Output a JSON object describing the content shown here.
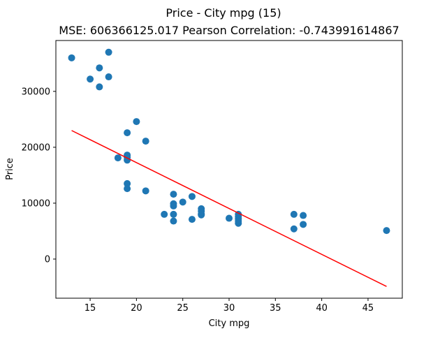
{
  "chart_data": {
    "type": "scatter",
    "title": "Price - City mpg (15)",
    "subtitle": "MSE: 606366125.017 Pearson Correlation: -0.743991614867",
    "xlabel": "City mpg",
    "ylabel": "Price",
    "xlim": [
      11.3,
      48.7
    ],
    "ylim": [
      -7000,
      39100
    ],
    "x_ticks": [
      15,
      20,
      25,
      30,
      35,
      40,
      45
    ],
    "y_ticks": [
      0,
      10000,
      20000,
      30000
    ],
    "grid": false,
    "legend": "none",
    "points": [
      {
        "x": 13,
        "y": 36000
      },
      {
        "x": 15,
        "y": 32200
      },
      {
        "x": 16,
        "y": 34200
      },
      {
        "x": 16,
        "y": 30800
      },
      {
        "x": 17,
        "y": 37000
      },
      {
        "x": 17,
        "y": 32600
      },
      {
        "x": 18,
        "y": 18100
      },
      {
        "x": 19,
        "y": 22600
      },
      {
        "x": 19,
        "y": 18600
      },
      {
        "x": 19,
        "y": 18200
      },
      {
        "x": 19,
        "y": 17700
      },
      {
        "x": 19,
        "y": 13500
      },
      {
        "x": 19,
        "y": 12600
      },
      {
        "x": 20,
        "y": 24600
      },
      {
        "x": 21,
        "y": 21100
      },
      {
        "x": 21,
        "y": 12200
      },
      {
        "x": 23,
        "y": 8000
      },
      {
        "x": 24,
        "y": 11600
      },
      {
        "x": 24,
        "y": 9900
      },
      {
        "x": 24,
        "y": 9500
      },
      {
        "x": 24,
        "y": 8000
      },
      {
        "x": 24,
        "y": 6800
      },
      {
        "x": 25,
        "y": 10200
      },
      {
        "x": 26,
        "y": 11200
      },
      {
        "x": 26,
        "y": 7100
      },
      {
        "x": 27,
        "y": 9000
      },
      {
        "x": 27,
        "y": 8600
      },
      {
        "x": 27,
        "y": 8100
      },
      {
        "x": 27,
        "y": 7900
      },
      {
        "x": 30,
        "y": 7300
      },
      {
        "x": 31,
        "y": 8000
      },
      {
        "x": 31,
        "y": 7600
      },
      {
        "x": 31,
        "y": 7200
      },
      {
        "x": 31,
        "y": 6800
      },
      {
        "x": 31,
        "y": 6400
      },
      {
        "x": 37,
        "y": 8000
      },
      {
        "x": 37,
        "y": 5400
      },
      {
        "x": 38,
        "y": 7800
      },
      {
        "x": 38,
        "y": 6200
      },
      {
        "x": 47,
        "y": 5100
      }
    ],
    "regression_line": {
      "x": [
        13,
        47
      ],
      "y": [
        23000,
        -4900
      ]
    },
    "colors": {
      "points": "#1f77b4",
      "line": "#ff0000",
      "axes": "#000000"
    }
  }
}
